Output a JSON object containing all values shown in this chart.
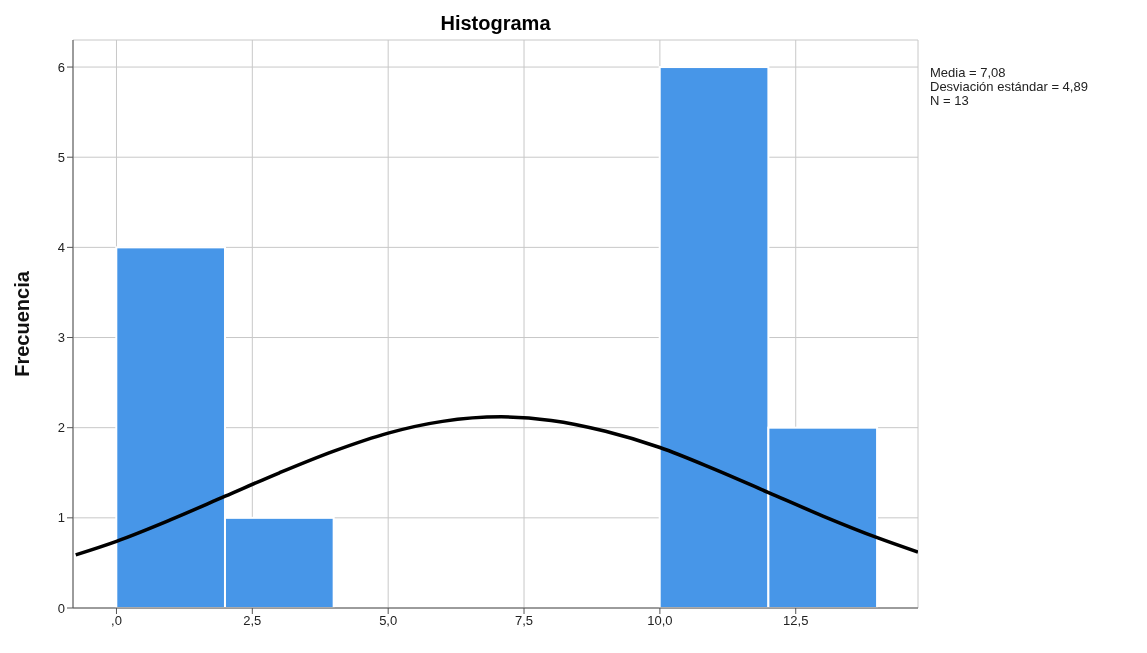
{
  "chart_data": {
    "type": "histogram",
    "title": "Histograma",
    "ylabel": "Frecuencia",
    "bins": [
      0,
      2,
      4,
      6,
      8,
      10,
      12,
      14
    ],
    "values": [
      4,
      1,
      0,
      0,
      0,
      6,
      2
    ],
    "color": "#4796e8",
    "series": [
      {
        "type": "line",
        "color": "#000000",
        "x": [
          -0.75,
          0,
          1,
          2,
          3,
          4,
          5,
          6,
          7.08,
          8,
          9,
          10,
          11,
          12,
          13,
          14,
          14.75
        ],
        "values": [
          0.59,
          0.74,
          0.98,
          1.24,
          1.5,
          1.74,
          1.94,
          2.07,
          2.12,
          2.08,
          1.96,
          1.78,
          1.54,
          1.28,
          1.02,
          0.78,
          0.62
        ]
      }
    ],
    "xlim": [
      -0.8,
      14.75
    ],
    "xticks": [
      {
        "value": 0,
        "label": ",0"
      },
      {
        "value": 2.5,
        "label": "2,5"
      },
      {
        "value": 5,
        "label": "5,0"
      },
      {
        "value": 7.5,
        "label": "7,5"
      },
      {
        "value": 10,
        "label": "10,0"
      },
      {
        "value": 12.5,
        "label": "12,5"
      }
    ],
    "ylim": [
      0,
      6.3
    ],
    "yticks": [
      0,
      1,
      2,
      3,
      4,
      5,
      6
    ],
    "grid": true,
    "annotations": [
      "Media = 7,08",
      "Desviación estándar = 4,89",
      "N = 13"
    ]
  }
}
